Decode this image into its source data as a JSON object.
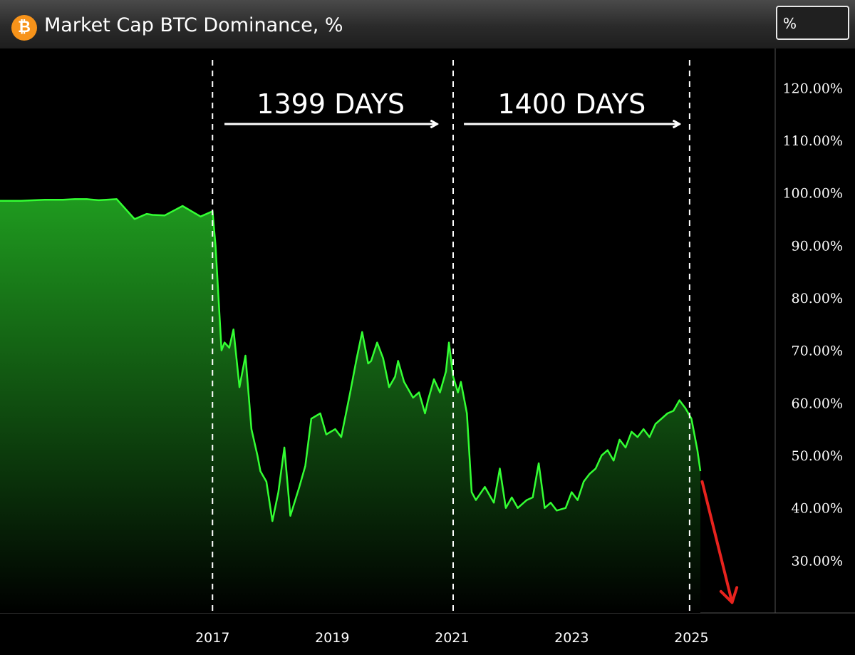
{
  "header": {
    "icon": "bitcoin-icon",
    "title": "Market Cap BTC Dominance, %",
    "unit_selector": "%"
  },
  "colors": {
    "line": "#33ff33",
    "fill_top": "#1f9a1f",
    "background": "#000000",
    "arrow_down": "#e8231e"
  },
  "chart_data": {
    "type": "area",
    "title": "Market Cap BTC Dominance, %",
    "xlabel": "",
    "ylabel": "",
    "xlim": [
      2013.45,
      2026.4
    ],
    "ylim": [
      20.0,
      127.5
    ],
    "y_ticks": [
      30,
      40,
      50,
      60,
      70,
      80,
      90,
      100,
      110,
      120
    ],
    "y_tick_labels": [
      "30.00%",
      "40.00%",
      "50.00%",
      "60.00%",
      "70.00%",
      "80.00%",
      "90.00%",
      "100.00%",
      "110.00%",
      "120.00%"
    ],
    "x_ticks": [
      2017,
      2019,
      2021,
      2023,
      2025
    ],
    "x_tick_labels": [
      "2017",
      "2019",
      "2021",
      "2023",
      "2025"
    ],
    "grid": false,
    "series": [
      {
        "x": [
          2013.45,
          2013.8,
          2014.2,
          2014.5,
          2014.7,
          2014.9,
          2015.1,
          2015.4,
          2015.7,
          2015.9,
          2016.0,
          2016.2,
          2016.5,
          2016.8,
          2017.0,
          2017.05,
          2017.1,
          2017.15,
          2017.2,
          2017.28,
          2017.35,
          2017.45,
          2017.55,
          2017.65,
          2017.75,
          2017.8,
          2017.9,
          2018.0,
          2018.1,
          2018.2,
          2018.3,
          2018.45,
          2018.55,
          2018.65,
          2018.8,
          2018.9,
          2019.05,
          2019.15,
          2019.3,
          2019.4,
          2019.5,
          2019.6,
          2019.65,
          2019.75,
          2019.85,
          2019.95,
          2020.05,
          2020.1,
          2020.2,
          2020.35,
          2020.45,
          2020.55,
          2020.6,
          2020.7,
          2020.8,
          2020.9,
          2020.95,
          2021.02,
          2021.1,
          2021.15,
          2021.25,
          2021.33,
          2021.4,
          2021.55,
          2021.7,
          2021.8,
          2021.9,
          2022.0,
          2022.1,
          2022.25,
          2022.35,
          2022.45,
          2022.55,
          2022.65,
          2022.75,
          2022.9,
          2023.0,
          2023.1,
          2023.2,
          2023.3,
          2023.4,
          2023.5,
          2023.6,
          2023.7,
          2023.8,
          2023.9,
          2024.0,
          2024.1,
          2024.2,
          2024.3,
          2024.4,
          2024.5,
          2024.6,
          2024.7,
          2024.8,
          2024.9,
          2025.0,
          2025.1,
          2025.15
        ],
        "values": [
          98.5,
          98.5,
          98.7,
          98.7,
          98.8,
          98.8,
          98.6,
          98.8,
          95.0,
          96.0,
          95.8,
          95.7,
          97.5,
          95.5,
          96.5,
          90.0,
          80.0,
          70.0,
          71.5,
          70.5,
          74.0,
          63.0,
          69.0,
          55.0,
          50.0,
          47.0,
          45.0,
          37.5,
          43.0,
          51.5,
          38.5,
          44.0,
          48.0,
          57.0,
          58.0,
          54.0,
          55.0,
          53.5,
          62.0,
          68.0,
          73.5,
          67.5,
          68.0,
          71.5,
          68.5,
          63.0,
          65.0,
          68.0,
          64.0,
          61.0,
          62.0,
          58.0,
          60.5,
          64.5,
          62.0,
          66.0,
          71.5,
          65.0,
          62.0,
          64.0,
          58.0,
          43.0,
          41.5,
          44.0,
          41.0,
          47.5,
          40.0,
          42.0,
          40.0,
          41.5,
          42.0,
          48.5,
          40.0,
          41.0,
          39.5,
          40.0,
          43.0,
          41.5,
          45.0,
          46.5,
          47.5,
          50.0,
          51.0,
          49.0,
          53.0,
          51.5,
          54.5,
          53.5,
          55.0,
          53.5,
          56.0,
          57.0,
          58.0,
          58.5,
          60.5,
          59.0,
          57.0,
          51.0,
          47.0
        ]
      }
    ],
    "vertical_markers": [
      2017.0,
      2021.02,
      2024.97
    ],
    "annotations": [
      {
        "label": "1399 DAYS",
        "x_start": 2017.2,
        "x_end": 2020.75
      },
      {
        "label": "1400 DAYS",
        "x_start": 2021.2,
        "x_end": 2024.8
      }
    ],
    "trend_arrow": {
      "x_start": 2025.18,
      "y_start": 45.0,
      "x_end": 2025.68,
      "y_end": 22.0
    }
  }
}
